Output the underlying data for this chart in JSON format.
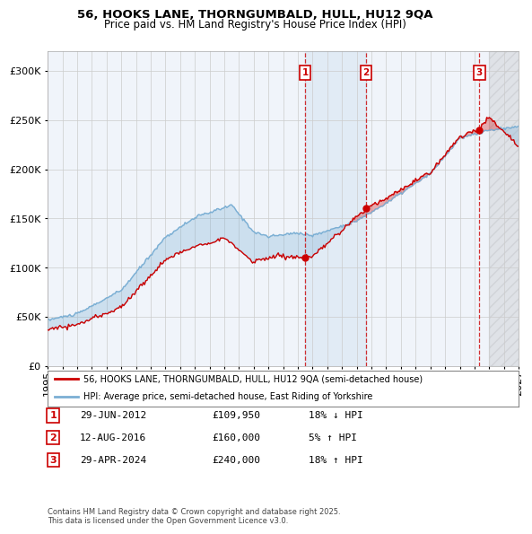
{
  "title_line1": "56, HOOKS LANE, THORNGUMBALD, HULL, HU12 9QA",
  "title_line2": "Price paid vs. HM Land Registry's House Price Index (HPI)",
  "ylim": [
    0,
    320000
  ],
  "yticks": [
    0,
    50000,
    100000,
    150000,
    200000,
    250000,
    300000
  ],
  "ytick_labels": [
    "£0",
    "£50K",
    "£100K",
    "£150K",
    "£200K",
    "£250K",
    "£300K"
  ],
  "hpi_color": "#7bafd4",
  "price_color": "#cc0000",
  "bg_color": "#ffffff",
  "grid_color": "#cccccc",
  "transaction_decimal": [
    2012.49,
    2016.62,
    2024.33
  ],
  "transaction_prices": [
    109950,
    160000,
    240000
  ],
  "transaction_labels": [
    "1",
    "2",
    "3"
  ],
  "table_rows": [
    {
      "num": "1",
      "date": "29-JUN-2012",
      "price": "£109,950",
      "hpi": "18% ↓ HPI"
    },
    {
      "num": "2",
      "date": "12-AUG-2016",
      "price": "£160,000",
      "hpi": "5% ↑ HPI"
    },
    {
      "num": "3",
      "date": "29-APR-2024",
      "price": "£240,000",
      "hpi": "18% ↑ HPI"
    }
  ],
  "legend_entries": [
    "56, HOOKS LANE, THORNGUMBALD, HULL, HU12 9QA (semi-detached house)",
    "HPI: Average price, semi-detached house, East Riding of Yorkshire"
  ],
  "footnote": "Contains HM Land Registry data © Crown copyright and database right 2025.\nThis data is licensed under the Open Government Licence v3.0.",
  "xstart_year": 1995,
  "xend_year": 2027
}
